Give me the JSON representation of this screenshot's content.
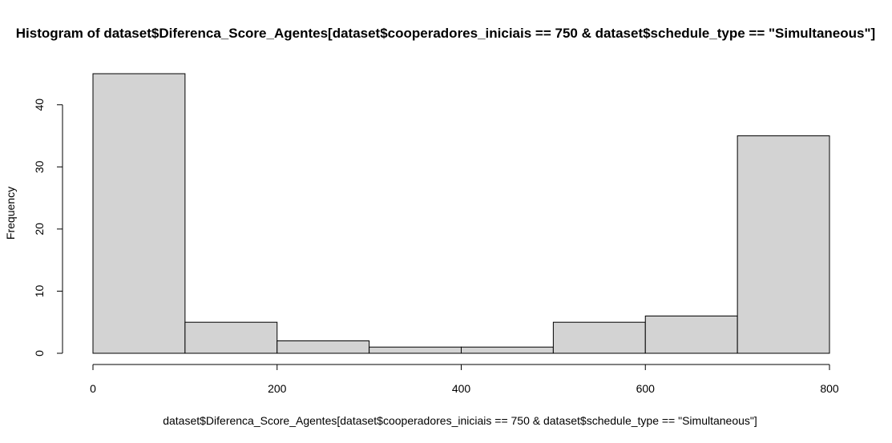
{
  "chart_data": {
    "type": "bar",
    "title": "Histogram of dataset$Diferenca_Score_Agentes[dataset$cooperadores_iniciais == 750 & dataset$schedule_type == \"Simultaneous\"]",
    "xlabel": "dataset$Diferenca_Score_Agentes[dataset$cooperadores_iniciais == 750 & dataset$schedule_type == \"Simultaneous\"]",
    "ylabel": "Frequency",
    "bins": [
      {
        "from": 0,
        "to": 100,
        "count": 45
      },
      {
        "from": 100,
        "to": 200,
        "count": 5
      },
      {
        "from": 200,
        "to": 300,
        "count": 2
      },
      {
        "from": 300,
        "to": 400,
        "count": 1
      },
      {
        "from": 400,
        "to": 500,
        "count": 1
      },
      {
        "from": 500,
        "to": 600,
        "count": 5
      },
      {
        "from": 600,
        "to": 700,
        "count": 6
      },
      {
        "from": 700,
        "to": 800,
        "count": 35
      }
    ],
    "xlim": [
      0,
      800
    ],
    "ylim": [
      0,
      45
    ],
    "xticks": [
      "0",
      "200",
      "400",
      "600",
      "800"
    ],
    "yticks": [
      "0",
      "10",
      "20",
      "30",
      "40"
    ],
    "grid": false,
    "fill_color": "#d3d3d3",
    "edge_color": "#000000"
  }
}
